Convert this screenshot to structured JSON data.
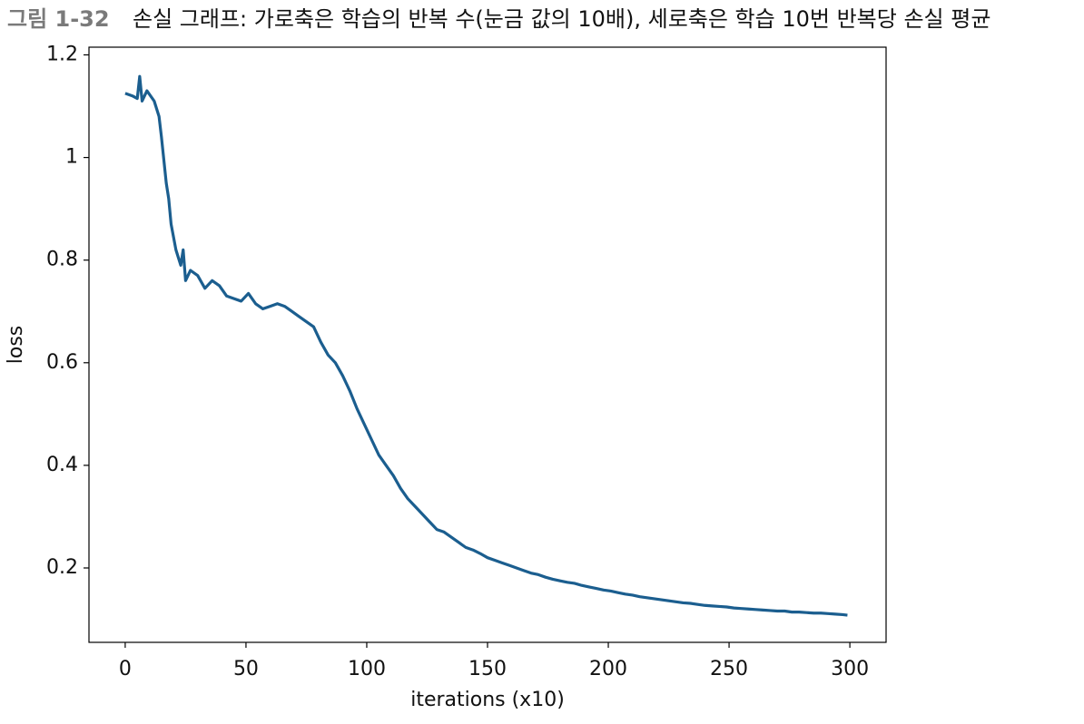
{
  "chart_data": {
    "type": "line",
    "figure_label": "그림 1-32",
    "title": "손실 그래프: 가로축은 학습의 반복 수(눈금 값의 10배), 세로축은 학습 10번 반복당 손실 평균",
    "x_label": "iterations (x10)",
    "y_label": "loss",
    "x": [
      0,
      3,
      5,
      6,
      7,
      9,
      12,
      14,
      15,
      17,
      18,
      19,
      21,
      23,
      24,
      25,
      27,
      30,
      33,
      36,
      39,
      42,
      45,
      48,
      51,
      54,
      57,
      60,
      63,
      66,
      69,
      72,
      75,
      78,
      81,
      84,
      87,
      90,
      93,
      96,
      99,
      102,
      105,
      108,
      111,
      114,
      117,
      120,
      123,
      126,
      129,
      132,
      135,
      138,
      141,
      144,
      147,
      150,
      153,
      156,
      159,
      162,
      165,
      168,
      171,
      174,
      177,
      180,
      183,
      186,
      189,
      192,
      195,
      198,
      201,
      204,
      207,
      210,
      213,
      216,
      219,
      222,
      225,
      228,
      231,
      234,
      237,
      240,
      243,
      246,
      249,
      252,
      255,
      258,
      261,
      264,
      267,
      270,
      273,
      276,
      279,
      282,
      285,
      288,
      291,
      294,
      297,
      299
    ],
    "values": [
      1.125,
      1.12,
      1.115,
      1.158,
      1.11,
      1.13,
      1.11,
      1.08,
      1.04,
      0.95,
      0.92,
      0.87,
      0.82,
      0.79,
      0.82,
      0.76,
      0.78,
      0.77,
      0.745,
      0.76,
      0.75,
      0.73,
      0.725,
      0.72,
      0.735,
      0.715,
      0.705,
      0.71,
      0.715,
      0.71,
      0.7,
      0.69,
      0.68,
      0.67,
      0.64,
      0.615,
      0.6,
      0.575,
      0.545,
      0.51,
      0.48,
      0.45,
      0.42,
      0.4,
      0.38,
      0.355,
      0.335,
      0.32,
      0.305,
      0.29,
      0.275,
      0.27,
      0.26,
      0.25,
      0.24,
      0.235,
      0.228,
      0.22,
      0.215,
      0.21,
      0.205,
      0.2,
      0.195,
      0.19,
      0.187,
      0.182,
      0.178,
      0.175,
      0.172,
      0.17,
      0.166,
      0.163,
      0.16,
      0.157,
      0.155,
      0.152,
      0.149,
      0.147,
      0.144,
      0.142,
      0.14,
      0.138,
      0.136,
      0.134,
      0.132,
      0.131,
      0.129,
      0.127,
      0.126,
      0.125,
      0.124,
      0.122,
      0.121,
      0.12,
      0.119,
      0.118,
      0.117,
      0.116,
      0.116,
      0.114,
      0.114,
      0.113,
      0.112,
      0.112,
      0.111,
      0.11,
      0.109,
      0.108
    ],
    "color": "#1b5e8f",
    "xlim": [
      -15,
      315
    ],
    "xticks": [
      0,
      50,
      100,
      150,
      200,
      250,
      300
    ],
    "ylim": [
      0.055,
      1.215
    ],
    "yticks": [
      0.2,
      0.4,
      0.6,
      0.8,
      1.0,
      1.2
    ]
  }
}
